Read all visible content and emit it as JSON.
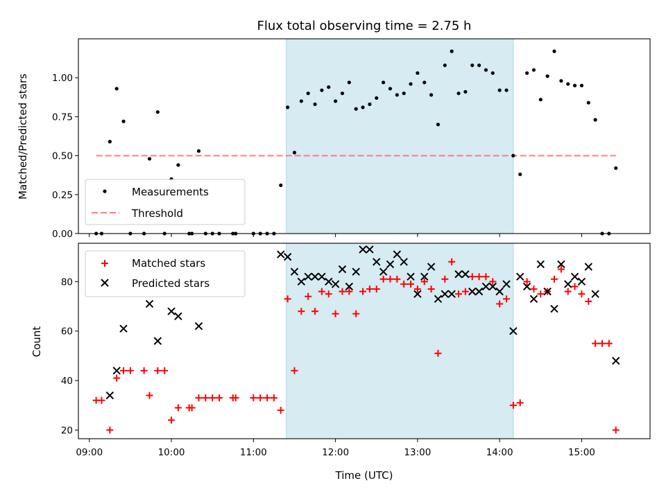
{
  "chart_data": [
    {
      "type": "scatter",
      "title": "Flux total observing time = 2.75 h",
      "xlabel": "",
      "ylabel": "Matched/Predicted stars",
      "xlim": [
        "08:52",
        "15:50"
      ],
      "ylim": [
        0,
        1.25
      ],
      "yticks": [
        "0.00",
        "0.25",
        "0.50",
        "0.75",
        "1.00"
      ],
      "grid": false,
      "legend_position": "lower-left",
      "shaded_region": {
        "x_start": "11:24",
        "x_end": "14:10",
        "color": "#add8e6"
      },
      "threshold": {
        "name": "Threshold",
        "value": 0.5,
        "x_start": "09:05",
        "x_end": "15:25",
        "color": "#f08080"
      },
      "series": [
        {
          "name": "Measurements",
          "marker": "dot",
          "color": "#000000",
          "points": [
            [
              "09:05",
              0
            ],
            [
              "09:09",
              0
            ],
            [
              "09:15",
              0.59
            ],
            [
              "09:20",
              0.93
            ],
            [
              "09:25",
              0.72
            ],
            [
              "09:30",
              0
            ],
            [
              "09:40",
              0
            ],
            [
              "09:44",
              0.48
            ],
            [
              "09:50",
              0.78
            ],
            [
              "09:55",
              0
            ],
            [
              "10:00",
              0.35
            ],
            [
              "10:05",
              0.44
            ],
            [
              "10:13",
              0
            ],
            [
              "10:15",
              0
            ],
            [
              "10:20",
              0.53
            ],
            [
              "10:25",
              0
            ],
            [
              "10:30",
              0
            ],
            [
              "10:35",
              0
            ],
            [
              "10:45",
              0
            ],
            [
              "10:47",
              0
            ],
            [
              "11:00",
              0
            ],
            [
              "11:05",
              0
            ],
            [
              "11:10",
              0
            ],
            [
              "11:15",
              0
            ],
            [
              "11:20",
              0.31
            ],
            [
              "11:25",
              0.81
            ],
            [
              "11:30",
              0.52
            ],
            [
              "11:35",
              0.85
            ],
            [
              "11:40",
              0.9
            ],
            [
              "11:45",
              0.83
            ],
            [
              "11:50",
              0.92
            ],
            [
              "11:55",
              0.94
            ],
            [
              "12:00",
              0.85
            ],
            [
              "12:05",
              0.9
            ],
            [
              "12:10",
              0.97
            ],
            [
              "12:15",
              0.8
            ],
            [
              "12:20",
              0.81
            ],
            [
              "12:25",
              0.83
            ],
            [
              "12:30",
              0.87
            ],
            [
              "12:35",
              0.97
            ],
            [
              "12:40",
              0.93
            ],
            [
              "12:45",
              0.89
            ],
            [
              "12:50",
              0.9
            ],
            [
              "12:55",
              0.96
            ],
            [
              "13:00",
              1.03
            ],
            [
              "13:05",
              0.97
            ],
            [
              "13:10",
              0.89
            ],
            [
              "13:15",
              0.7
            ],
            [
              "13:20",
              1.08
            ],
            [
              "13:25",
              1.17
            ],
            [
              "13:30",
              0.9
            ],
            [
              "13:35",
              0.91
            ],
            [
              "13:40",
              1.08
            ],
            [
              "13:45",
              1.08
            ],
            [
              "13:50",
              1.05
            ],
            [
              "13:55",
              1.03
            ],
            [
              "14:00",
              0.92
            ],
            [
              "14:05",
              0.92
            ],
            [
              "14:10",
              0.5
            ],
            [
              "14:15",
              0.38
            ],
            [
              "14:20",
              1.03
            ],
            [
              "14:25",
              1.05
            ],
            [
              "14:30",
              0.86
            ],
            [
              "14:35",
              1.01
            ],
            [
              "14:40",
              1.17
            ],
            [
              "14:45",
              0.98
            ],
            [
              "14:50",
              0.96
            ],
            [
              "14:55",
              0.95
            ],
            [
              "15:00",
              0.95
            ],
            [
              "15:05",
              0.84
            ],
            [
              "15:10",
              0.73
            ],
            [
              "15:15",
              0
            ],
            [
              "15:20",
              0
            ],
            [
              "15:25",
              0.42
            ]
          ]
        }
      ]
    },
    {
      "type": "scatter",
      "title": "",
      "xlabel": "Time (UTC)",
      "ylabel": "Count",
      "xlim": [
        "08:52",
        "15:50"
      ],
      "ylim": [
        16.5,
        95.5
      ],
      "yticks": [
        "20",
        "40",
        "60",
        "80"
      ],
      "xticks": [
        "09:00",
        "10:00",
        "11:00",
        "12:00",
        "13:00",
        "14:00",
        "15:00"
      ],
      "grid": false,
      "legend_position": "upper-left",
      "shaded_region": {
        "x_start": "11:24",
        "x_end": "14:10",
        "color": "#add8e6"
      },
      "series": [
        {
          "name": "Matched stars",
          "marker": "plus",
          "color": "#ff0000",
          "points": [
            [
              "09:05",
              32
            ],
            [
              "09:09",
              32
            ],
            [
              "09:15",
              20
            ],
            [
              "09:20",
              41
            ],
            [
              "09:25",
              44
            ],
            [
              "09:30",
              44
            ],
            [
              "09:40",
              44
            ],
            [
              "09:44",
              34
            ],
            [
              "09:50",
              44
            ],
            [
              "09:55",
              44
            ],
            [
              "10:00",
              24
            ],
            [
              "10:05",
              29
            ],
            [
              "10:13",
              29
            ],
            [
              "10:15",
              29
            ],
            [
              "10:20",
              33
            ],
            [
              "10:25",
              33
            ],
            [
              "10:30",
              33
            ],
            [
              "10:35",
              33
            ],
            [
              "10:45",
              33
            ],
            [
              "10:47",
              33
            ],
            [
              "11:00",
              33
            ],
            [
              "11:05",
              33
            ],
            [
              "11:10",
              33
            ],
            [
              "11:15",
              33
            ],
            [
              "11:20",
              28
            ],
            [
              "11:25",
              73
            ],
            [
              "11:30",
              44
            ],
            [
              "11:35",
              68
            ],
            [
              "11:40",
              74
            ],
            [
              "11:45",
              68
            ],
            [
              "11:50",
              76
            ],
            [
              "11:55",
              75
            ],
            [
              "12:00",
              67
            ],
            [
              "12:05",
              76
            ],
            [
              "12:10",
              76
            ],
            [
              "12:15",
              67
            ],
            [
              "12:20",
              76
            ],
            [
              "12:25",
              77
            ],
            [
              "12:30",
              77
            ],
            [
              "12:35",
              81
            ],
            [
              "12:40",
              81
            ],
            [
              "12:45",
              81
            ],
            [
              "12:50",
              79
            ],
            [
              "12:55",
              79
            ],
            [
              "13:00",
              77
            ],
            [
              "13:05",
              80
            ],
            [
              "13:10",
              77
            ],
            [
              "13:15",
              51
            ],
            [
              "13:20",
              81
            ],
            [
              "13:25",
              88
            ],
            [
              "13:30",
              75
            ],
            [
              "13:35",
              76
            ],
            [
              "13:40",
              82
            ],
            [
              "13:45",
              82
            ],
            [
              "13:50",
              82
            ],
            [
              "13:55",
              80
            ],
            [
              "14:00",
              71
            ],
            [
              "14:05",
              73
            ],
            [
              "14:10",
              30
            ],
            [
              "14:15",
              31
            ],
            [
              "14:20",
              80
            ],
            [
              "14:25",
              77
            ],
            [
              "14:30",
              75
            ],
            [
              "14:35",
              76
            ],
            [
              "14:40",
              81
            ],
            [
              "14:45",
              85
            ],
            [
              "14:50",
              76
            ],
            [
              "14:55",
              78
            ],
            [
              "15:00",
              75
            ],
            [
              "15:05",
              72
            ],
            [
              "15:10",
              55
            ],
            [
              "15:15",
              55
            ],
            [
              "15:20",
              55
            ],
            [
              "15:25",
              20
            ]
          ]
        },
        {
          "name": "Predicted stars",
          "marker": "x",
          "color": "#000000",
          "points": [
            [
              "09:15",
              34
            ],
            [
              "09:20",
              44
            ],
            [
              "09:25",
              61
            ],
            [
              "09:44",
              71
            ],
            [
              "09:50",
              56
            ],
            [
              "10:00",
              68
            ],
            [
              "10:05",
              66
            ],
            [
              "10:20",
              62
            ],
            [
              "11:20",
              91
            ],
            [
              "11:25",
              90
            ],
            [
              "11:30",
              84
            ],
            [
              "11:35",
              80
            ],
            [
              "11:40",
              82
            ],
            [
              "11:45",
              82
            ],
            [
              "11:50",
              82
            ],
            [
              "11:55",
              80
            ],
            [
              "12:00",
              79
            ],
            [
              "12:05",
              85
            ],
            [
              "12:10",
              78
            ],
            [
              "12:15",
              84
            ],
            [
              "12:20",
              93
            ],
            [
              "12:25",
              93
            ],
            [
              "12:30",
              88
            ],
            [
              "12:35",
              84
            ],
            [
              "12:40",
              87
            ],
            [
              "12:45",
              91
            ],
            [
              "12:50",
              88
            ],
            [
              "12:55",
              82
            ],
            [
              "13:00",
              75
            ],
            [
              "13:05",
              82
            ],
            [
              "13:10",
              86
            ],
            [
              "13:15",
              73
            ],
            [
              "13:20",
              75
            ],
            [
              "13:25",
              75
            ],
            [
              "13:30",
              83
            ],
            [
              "13:35",
              83
            ],
            [
              "13:40",
              76
            ],
            [
              "13:45",
              76
            ],
            [
              "13:50",
              78
            ],
            [
              "13:55",
              78
            ],
            [
              "14:00",
              76
            ],
            [
              "14:05",
              79
            ],
            [
              "14:10",
              60
            ],
            [
              "14:15",
              82
            ],
            [
              "14:20",
              78
            ],
            [
              "14:25",
              73
            ],
            [
              "14:30",
              87
            ],
            [
              "14:35",
              76
            ],
            [
              "14:40",
              69
            ],
            [
              "14:45",
              87
            ],
            [
              "14:50",
              79
            ],
            [
              "14:55",
              82
            ],
            [
              "15:00",
              80
            ],
            [
              "15:05",
              86
            ],
            [
              "15:10",
              75
            ],
            [
              "15:25",
              48
            ]
          ]
        }
      ]
    }
  ]
}
